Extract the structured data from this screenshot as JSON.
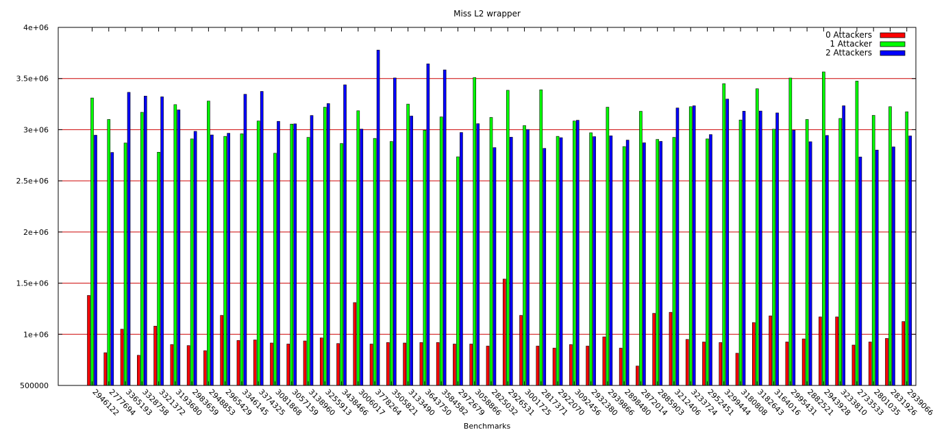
{
  "chart_data": {
    "type": "bar",
    "title": "Miss L2 wrapper",
    "xlabel": "Benchmarks",
    "ylabel": "",
    "ylim": [
      500000,
      4000000
    ],
    "yticks": [
      500000,
      1000000,
      1500000,
      2000000,
      2500000,
      3000000,
      3500000,
      4000000
    ],
    "ytick_labels": [
      "500000",
      "1e+06",
      "1.5e+06",
      "2e+06",
      "2.5e+06",
      "3e+06",
      "3.5e+06",
      "4e+06"
    ],
    "grid": "horizontal",
    "legend_position": "top-right",
    "categories": [
      "2946122",
      "2777694",
      "3365193",
      "3328758",
      "3321372",
      "3193680",
      "2983659",
      "2948853",
      "2965429",
      "3346145",
      "3374325",
      "3081868",
      "3057159",
      "3138960",
      "3255913",
      "3438466",
      "3006017",
      "3778264",
      "3505821",
      "3133490",
      "3643750",
      "3584582",
      "2972679",
      "3058866",
      "2825032",
      "2926531",
      "3001725",
      "2817371",
      "2922070",
      "3092456",
      "2932380",
      "2939866",
      "2898480",
      "2872014",
      "2885903",
      "3212406",
      "3233724",
      "2952451",
      "3299444",
      "3180808",
      "3182643",
      "3164016",
      "2995431",
      "2882521",
      "2943928",
      "3233810",
      "2733533",
      "2801035",
      "2831926",
      "2939066"
    ],
    "series": [
      {
        "name": "0 Attackers",
        "color": "#ff0000",
        "values": [
          1380000,
          820000,
          1050000,
          795000,
          1080000,
          900000,
          890000,
          840000,
          1185000,
          940000,
          945000,
          915000,
          905000,
          935000,
          965000,
          910000,
          1310000,
          905000,
          920000,
          915000,
          920000,
          920000,
          905000,
          905000,
          885000,
          1540000,
          1185000,
          885000,
          865000,
          900000,
          885000,
          975000,
          865000,
          690000,
          1205000,
          1215000,
          950000,
          925000,
          920000,
          815000,
          1115000,
          1180000,
          925000,
          955000,
          1170000,
          1170000,
          895000,
          925000,
          960000,
          1125000
        ]
      },
      {
        "name": "1 Attacker",
        "color": "#00ff00",
        "values": [
          3310000,
          3100000,
          2870000,
          3170000,
          2780000,
          3245000,
          2910000,
          3280000,
          2935000,
          2960000,
          3085000,
          2770000,
          3055000,
          2925000,
          3220000,
          2865000,
          3185000,
          2915000,
          2885000,
          3250000,
          2995000,
          3125000,
          2735000,
          3510000,
          3120000,
          3385000,
          3040000,
          3390000,
          2935000,
          3085000,
          2970000,
          3220000,
          2835000,
          3180000,
          2905000,
          2925000,
          3225000,
          2910000,
          3450000,
          3095000,
          3400000,
          3005000,
          3505000,
          3100000,
          3565000,
          3110000,
          3475000,
          3140000,
          3225000,
          3175000
        ]
      },
      {
        "name": "2 Attackers",
        "color": "#0000ff",
        "values": [
          2946122,
          2777694,
          3365193,
          3328758,
          3321372,
          3193680,
          2983659,
          2948853,
          2965429,
          3346145,
          3374325,
          3081868,
          3057159,
          3138960,
          3255913,
          3438466,
          3006017,
          3778264,
          3505821,
          3133490,
          3643750,
          3584582,
          2972679,
          3058866,
          2825032,
          2926531,
          3001725,
          2817371,
          2922070,
          3092456,
          2932380,
          2939866,
          2898480,
          2872014,
          2885903,
          3212406,
          3233724,
          2952451,
          3299444,
          3180808,
          3182643,
          3164016,
          2995431,
          2882521,
          2943928,
          3233810,
          2733533,
          2801035,
          2831926,
          2939066
        ]
      }
    ]
  }
}
